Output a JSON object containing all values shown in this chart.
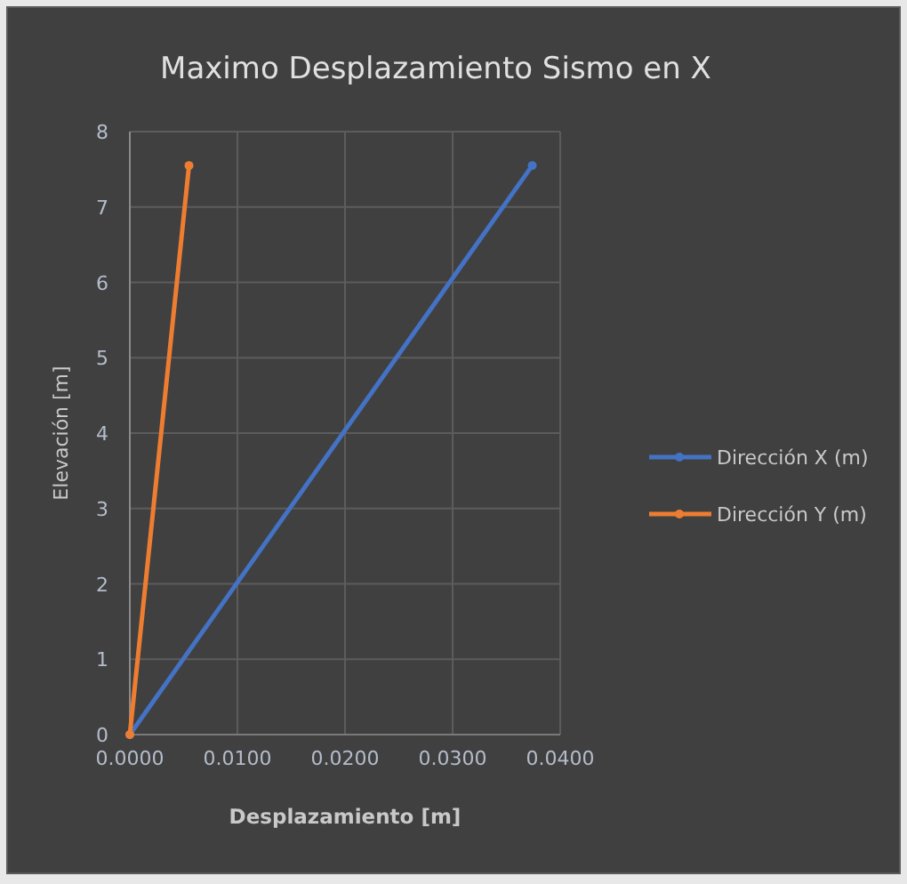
{
  "chart_data": {
    "type": "line",
    "title": "Maximo Desplazamiento Sismo en X",
    "xlabel": "Desplazamiento [m]",
    "ylabel": "Elevación [m]",
    "xlim": [
      0,
      0.04
    ],
    "xticks": [
      {
        "value": 0,
        "label": "0.0000"
      },
      {
        "value": 0.01,
        "label": "0.0100"
      },
      {
        "value": 0.02,
        "label": "0.0200"
      },
      {
        "value": 0.03,
        "label": "0.0300"
      },
      {
        "value": 0.04,
        "label": "0.0400"
      }
    ],
    "ylim": [
      0,
      8
    ],
    "yticks": [
      0,
      1,
      2,
      3,
      4,
      5,
      6,
      7,
      8
    ],
    "grid": true,
    "legend": "right",
    "marker": "circle",
    "line_style": "solid",
    "series": [
      {
        "name": "Dirección X (m)",
        "color": "#4472c4",
        "x": [
          0,
          0.0374
        ],
        "values": [
          0,
          7.55
        ]
      },
      {
        "name": "Dirección Y (m)",
        "color": "#ed7d31",
        "x": [
          0,
          0.0055
        ],
        "values": [
          0,
          7.55
        ]
      }
    ]
  }
}
